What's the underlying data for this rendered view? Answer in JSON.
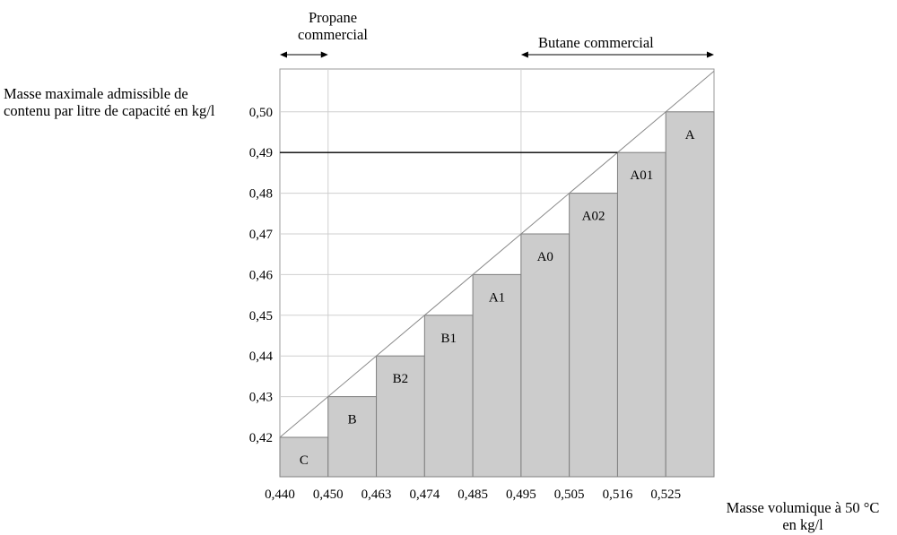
{
  "chart_data": {
    "type": "bar",
    "ylabel": "Masse maximale admissible de contenu par litre de capacité en kg/l",
    "xlabel": "Masse volumique à 50 °C en kg/l",
    "x_ticks": [
      "0,440",
      "0,450",
      "0,463",
      "0,474",
      "0,485",
      "0,495",
      "0,505",
      "0,516",
      "0,525"
    ],
    "y_ticks": [
      "0,42",
      "0,43",
      "0,44",
      "0,45",
      "0,46",
      "0,47",
      "0,48",
      "0,49",
      "0,50"
    ],
    "ylim": [
      0.412,
      0.518
    ],
    "steps": [
      {
        "label": "C",
        "value": 0.42
      },
      {
        "label": "B",
        "value": 0.43
      },
      {
        "label": "B2",
        "value": 0.44
      },
      {
        "label": "B1",
        "value": 0.45
      },
      {
        "label": "A1",
        "value": 0.46
      },
      {
        "label": "A0",
        "value": 0.47
      },
      {
        "label": "A02",
        "value": 0.48
      },
      {
        "label": "A01",
        "value": 0.49
      },
      {
        "label": "A",
        "value": 0.5
      }
    ],
    "ranges": [
      {
        "label": "Propane commercial",
        "from": "0,440",
        "to": "0,450"
      },
      {
        "label": "Butane commercial",
        "from": "0,495",
        "to": "0,525"
      }
    ],
    "reference_line": {
      "y": 0.49,
      "to_x": "0,516"
    },
    "colors": {
      "bar_fill": "#cccccc",
      "bar_stroke": "#7f7f7f",
      "grid": "#cfcfcf",
      "frame": "#9a9a9a"
    }
  }
}
